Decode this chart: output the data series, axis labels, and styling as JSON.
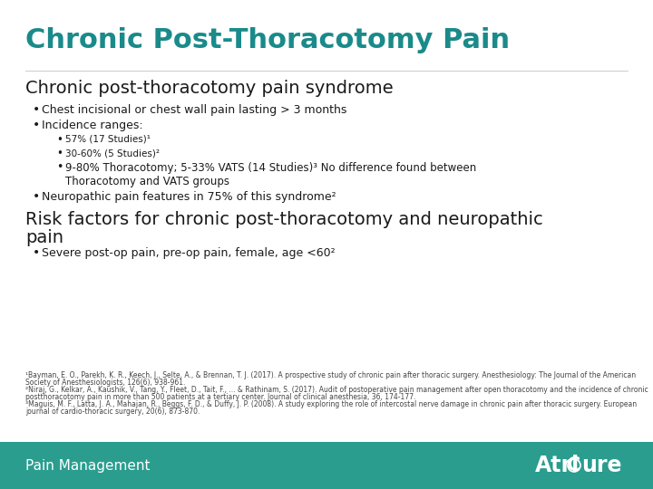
{
  "title": "Chronic Post-Thoracotomy Pain",
  "title_color": "#1a8a8a",
  "title_fontsize": 22,
  "bg_color": "#ffffff",
  "footer_bg_color": "#2a9d8f",
  "footer_text": "Pain Management",
  "footer_fontsize": 11,
  "footer_text_color": "#ffffff",
  "section1_heading": "Chronic post-thoracotomy pain syndrome",
  "section1_heading_fontsize": 14,
  "section2_heading_line1": "Risk factors for chronic post-thoracotomy and neuropathic",
  "section2_heading_line2": "pain",
  "section2_heading_fontsize": 14,
  "bullet1": "Chest incisional or chest wall pain lasting > 3 months",
  "bullet2": "Incidence ranges:",
  "sub1": "57% (17 Studies)¹",
  "sub2": "30-60% (5 Studies)²",
  "sub3a": "9-80% Thoracotomy; 5-33% VATS (14 Studies)³ No difference found between",
  "sub3b": "Thoracotomy and VATS groups",
  "bullet3": "Neuropathic pain features in 75% of this syndrome²",
  "bullet_risk": "Severe post-op pain, pre-op pain, female, age <60²",
  "footnote1": "¹Bayman, E. O., Parekh, K. R., Keech, J., Selte, A., & Brennan, T. J. (2017). A prospective study of chronic pain after thoracic surgery. Anesthesiology: The Journal of the American",
  "footnote1b": "Society of Anesthesiologists, 126(6), 938-961.",
  "footnote2": "²Niraj, G., Kelkar, A., Kaushik, V., Tang, Y., Fleet, D., Tait, F., ... & Rathinam, S. (2017). Audit of postoperative pain management after open thoracotomy and the incidence of chronic",
  "footnote2b": "postthoracotomy pain in more than 500 patients at a tertiary center. Journal of clinical anesthesia, 36, 174-177.",
  "footnote3": "³Maguis, M. F., Latta, J. A., Mahajan, R., Beggs, F. D., & Duffy, J. P. (2008). A study exploring the role of intercostal nerve damage in chronic pain after thoracic surgery. European",
  "footnote3b": "journal of cardio-thoracic surgery, 20(6), 873-870.",
  "body_text_color": "#1a1a1a",
  "body_fontsize": 9,
  "footnote_fontsize": 5.5,
  "atricure_fontsize": 17
}
